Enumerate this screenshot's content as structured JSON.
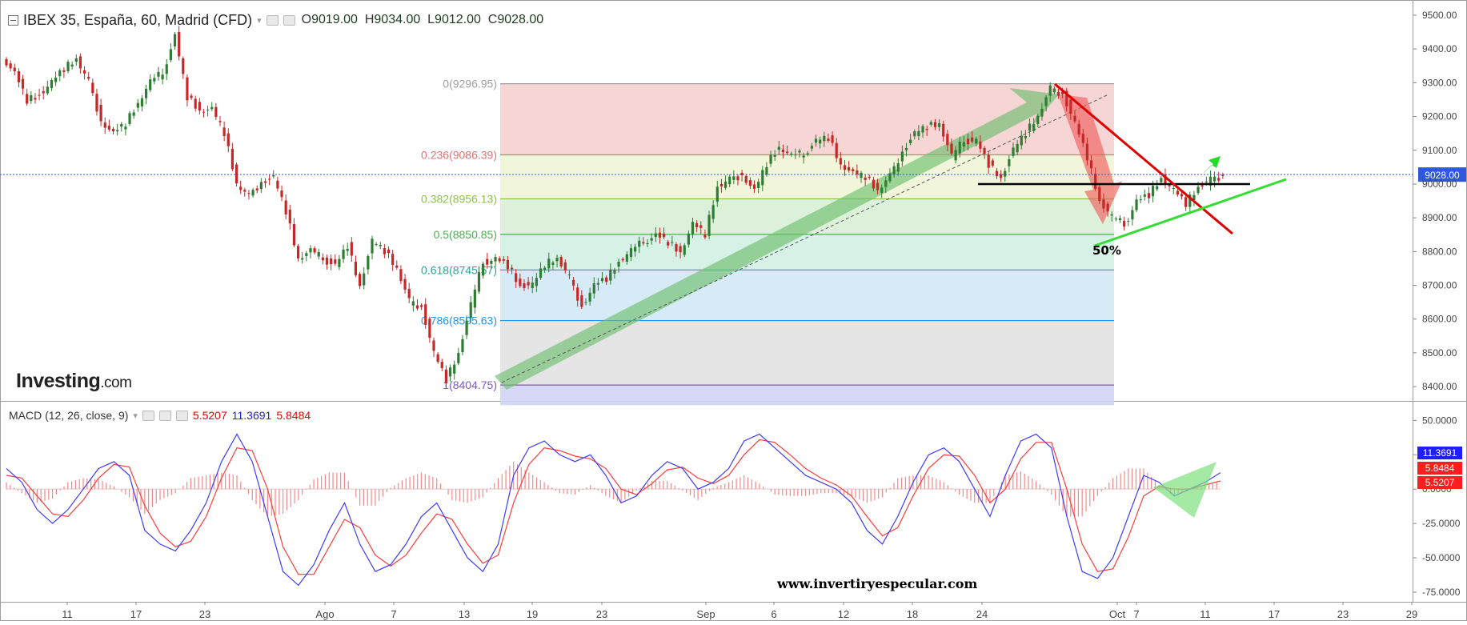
{
  "header": {
    "symbol": "IBEX 35, España, 60, Madrid (CFD)",
    "open_label": "O",
    "open": "9019.00",
    "high_label": "H",
    "high": "9034.00",
    "low_label": "L",
    "low": "9012.00",
    "close_label": "C",
    "close": "9028.00"
  },
  "macd_header": {
    "label": "MACD (12, 26, close, 9)",
    "v1": "5.5207",
    "v2": "11.3691",
    "v3": "5.8484"
  },
  "logo": {
    "main": "Investing",
    "suffix": ".com"
  },
  "watermark": "www.invertiryespecular.com",
  "colors": {
    "up": "#2e7d32",
    "down": "#c62828",
    "macd_line": "#3b3bff",
    "signal_line": "#ff3b3b",
    "histogram": "#f08a8a",
    "price_label_bg": "#2f57e0"
  },
  "chart_data": [
    {
      "type": "candlestick",
      "title": "IBEX 35, España, 60, Madrid (CFD)",
      "x_ticks": [
        "11",
        "17",
        "23",
        "Ago",
        "7",
        "13",
        "19",
        "23",
        "Sep",
        "6",
        "12",
        "18",
        "24",
        "Oct",
        "7",
        "11",
        "17",
        "23",
        "29"
      ],
      "y_ticks": [
        "9500.00",
        "9400.00",
        "9300.00",
        "9200.00",
        "9100.00",
        "9000.00",
        "8900.00",
        "8800.00",
        "8700.00",
        "8600.00",
        "8500.00",
        "8400.00"
      ],
      "ylim": [
        8360,
        9545
      ],
      "last_price": "9028.00",
      "price_path": [
        9380,
        9330,
        9250,
        9265,
        9300,
        9340,
        9370,
        9300,
        9190,
        9150,
        9180,
        9240,
        9300,
        9330,
        9440,
        9260,
        9220,
        9220,
        9150,
        9000,
        8960,
        9010,
        9020,
        8920,
        8780,
        8800,
        8780,
        8760,
        8820,
        8700,
        8830,
        8800,
        8750,
        8650,
        8640,
        8500,
        8420,
        8500,
        8640,
        8770,
        8780,
        8760,
        8700,
        8700,
        8760,
        8780,
        8720,
        8640,
        8700,
        8720,
        8770,
        8800,
        8830,
        8850,
        8830,
        8800,
        8880,
        8850,
        8990,
        9010,
        9030,
        8980,
        9060,
        9110,
        9080,
        9090,
        9130,
        9140,
        9060,
        9030,
        9020,
        8980,
        9020,
        9100,
        9150,
        9170,
        9180,
        9080,
        9130,
        9130,
        9060,
        9020,
        9100,
        9150,
        9200,
        9280,
        9270,
        9180,
        9080,
        8950,
        8900,
        8880,
        8950,
        8970,
        9020,
        8980,
        8940,
        8990,
        9010,
        9028
      ],
      "fibonacci": {
        "levels": [
          {
            "label": "0(9296.95)",
            "price": 9296.95,
            "line": "#9e9e9e",
            "fill": "#f5d0d0"
          },
          {
            "label": "0.236(9086.39)",
            "price": 9086.39,
            "line": "#e57373",
            "fill": "#eff5d6"
          },
          {
            "label": "0.382(8956.13)",
            "price": 8956.13,
            "line": "#8bc34a",
            "fill": "#d9f0d6"
          },
          {
            "label": "0.5(8850.85)",
            "price": 8850.85,
            "line": "#4caf50",
            "fill": "#d2efe2"
          },
          {
            "label": "0.618(8745.57)",
            "price": 8745.57,
            "line": "#26a69a",
            "fill": "#d3e9f5"
          },
          {
            "label": "0.786(8595.63)",
            "price": 8595.63,
            "line": "#2196f3",
            "fill": "#e2e2e2"
          },
          {
            "label": "1(8404.75)",
            "price": 8404.75,
            "line": "#7e57c2",
            "fill": "#d3d3f5"
          }
        ],
        "bottom_fill_to": 8345
      },
      "annotations": {
        "pct_label": "50%",
        "horizontal_level": 9000,
        "resistance": {
          "from": [
            0.769,
            9320
          ],
          "to": [
            0.892,
            8855
          ]
        },
        "support": {
          "from": [
            0.798,
            8830
          ],
          "to": [
            0.932,
            9030
          ]
        }
      }
    },
    {
      "type": "macd",
      "title": "MACD (12, 26, close, 9)",
      "y_ticks": [
        "50.0000",
        "25.0000",
        "0.0000",
        "-25.0000",
        "-50.0000",
        "-75.0000"
      ],
      "ylim": [
        -82,
        63
      ],
      "values_labels": {
        "macd": "11.3691",
        "signal": "5.8484",
        "hist": "5.5207"
      },
      "macd": [
        15,
        5,
        -15,
        -25,
        -15,
        0,
        15,
        20,
        10,
        -30,
        -40,
        -45,
        -30,
        -10,
        20,
        40,
        20,
        -20,
        -60,
        -70,
        -55,
        -30,
        -10,
        -40,
        -60,
        -55,
        -40,
        -20,
        -10,
        -30,
        -50,
        -60,
        -40,
        10,
        30,
        35,
        25,
        20,
        25,
        10,
        -10,
        -5,
        10,
        20,
        15,
        0,
        5,
        15,
        35,
        40,
        30,
        20,
        10,
        5,
        0,
        -10,
        -30,
        -40,
        -20,
        5,
        25,
        30,
        20,
        0,
        -20,
        10,
        35,
        40,
        30,
        -20,
        -60,
        -65,
        -50,
        -20,
        10,
        5,
        -5,
        0,
        5,
        12
      ],
      "signal": [
        10,
        8,
        -5,
        -18,
        -20,
        -8,
        8,
        18,
        16,
        -12,
        -32,
        -42,
        -38,
        -20,
        8,
        30,
        28,
        0,
        -42,
        -62,
        -62,
        -42,
        -22,
        -28,
        -48,
        -56,
        -48,
        -32,
        -18,
        -22,
        -40,
        -54,
        -48,
        -10,
        18,
        30,
        28,
        24,
        22,
        15,
        0,
        -4,
        4,
        14,
        16,
        8,
        4,
        10,
        25,
        36,
        34,
        25,
        15,
        8,
        3,
        -5,
        -20,
        -34,
        -28,
        -5,
        15,
        25,
        24,
        10,
        -10,
        0,
        22,
        34,
        34,
        0,
        -40,
        -60,
        -58,
        -35,
        -5,
        2,
        0,
        0,
        3,
        6
      ],
      "hist": [
        5,
        -3,
        -10,
        -7,
        5,
        8,
        7,
        2,
        -6,
        -18,
        -8,
        -3,
        8,
        10,
        12,
        10,
        -8,
        -20,
        -18,
        -8,
        7,
        12,
        12,
        -12,
        -12,
        1,
        8,
        12,
        8,
        -8,
        -10,
        -6,
        8,
        20,
        12,
        5,
        -3,
        -4,
        3,
        -5,
        -10,
        -1,
        6,
        6,
        -1,
        -8,
        1,
        5,
        10,
        4,
        -4,
        -5,
        -5,
        -3,
        -3,
        -5,
        -10,
        -6,
        8,
        10,
        10,
        5,
        -4,
        -10,
        -10,
        10,
        13,
        6,
        -4,
        -20,
        -20,
        -5,
        8,
        15,
        15,
        3,
        -5,
        0,
        2,
        6
      ]
    }
  ]
}
